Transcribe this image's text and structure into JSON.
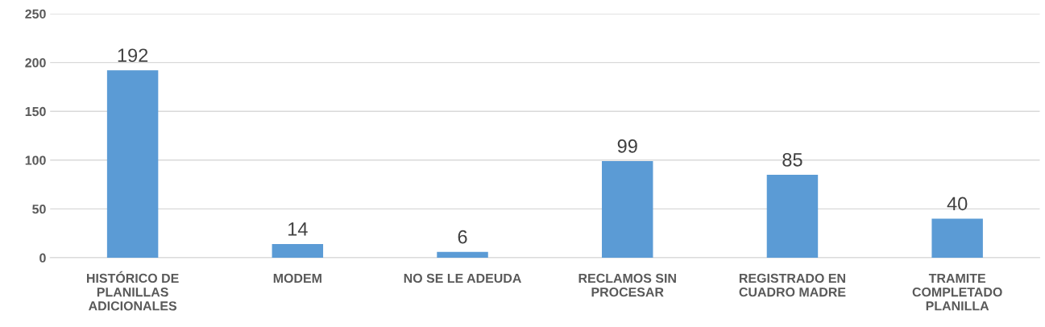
{
  "chart_data": {
    "type": "bar",
    "categories": [
      "HISTÓRICO DE\nPLANILLAS\nADICIONALES",
      "MODEM",
      "NO SE LE ADEUDA",
      "RECLAMOS SIN\nPROCESAR",
      "REGISTRADO EN\nCUADRO MADRE",
      "TRAMITE\nCOMPLETADO\nPLANILLA"
    ],
    "values": [
      192,
      14,
      6,
      99,
      85,
      40
    ],
    "color": "#5b9bd5",
    "ylim": [
      0,
      250
    ],
    "yticks": [
      0,
      50,
      100,
      150,
      200,
      250
    ],
    "grid": "y",
    "data_labels": true
  }
}
